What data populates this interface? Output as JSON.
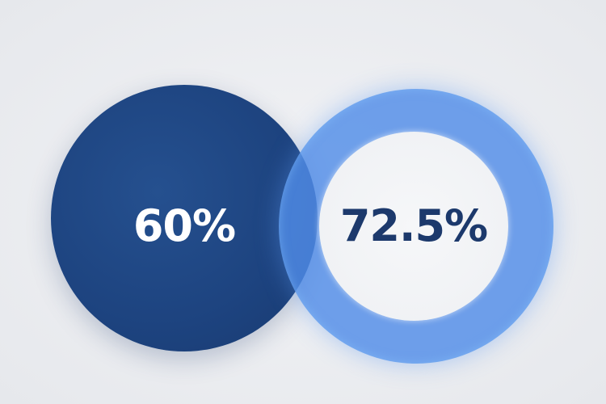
{
  "values": [
    {
      "label": "60%",
      "percent": 60,
      "color": "#1d437f"
    },
    {
      "label": "72.5%",
      "percent": 72.5,
      "color": "#508ce8"
    }
  ],
  "colors": {
    "background": "#e9ebef",
    "text_dark": "#1c396c",
    "text_light": "#ffffff"
  }
}
